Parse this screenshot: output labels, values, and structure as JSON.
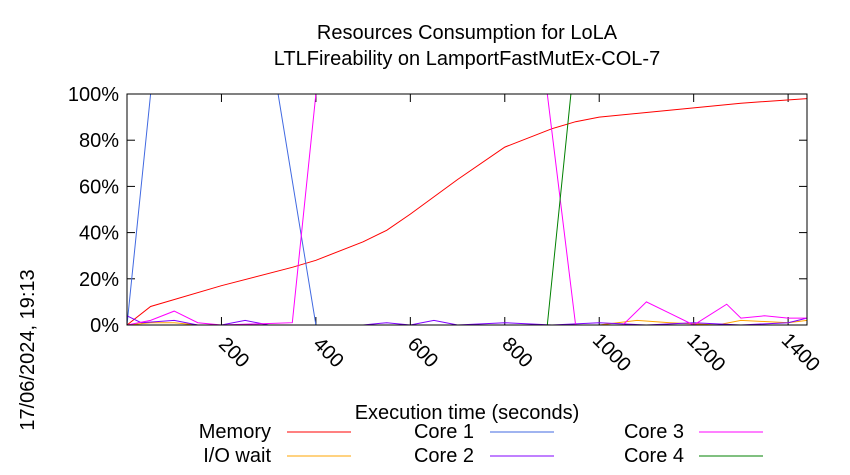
{
  "chart_data": {
    "type": "line",
    "title": "Resources Consumption for LoLA",
    "subtitle": "LTLFireability on LamportFastMutEx-COL-7",
    "xlabel": "Execution time (seconds)",
    "ylabel": "",
    "side_label": "17/06/2024, 19:13",
    "xlim": [
      0,
      1440
    ],
    "ylim": [
      0,
      100
    ],
    "x_ticks": [
      200,
      400,
      600,
      800,
      1000,
      1200,
      1400
    ],
    "y_ticks": [
      0,
      20,
      40,
      60,
      80,
      100
    ],
    "y_tick_suffix": "%",
    "grid": false,
    "legend_position": "bottom",
    "series": [
      {
        "name": "Memory",
        "color": "#ff0000",
        "x": [
          0,
          50,
          200,
          350,
          400,
          500,
          550,
          600,
          700,
          800,
          900,
          950,
          1000,
          1100,
          1200,
          1300,
          1440
        ],
        "y": [
          0,
          8,
          17,
          25,
          28,
          36,
          41,
          48,
          63,
          77,
          85,
          88,
          90,
          92,
          94,
          96,
          98
        ]
      },
      {
        "name": "I/O wait",
        "color": "#ffa500",
        "x": [
          0,
          50,
          100,
          150,
          200,
          300,
          400,
          500,
          600,
          700,
          800,
          900,
          1000,
          1080,
          1150,
          1250,
          1300,
          1400,
          1440
        ],
        "y": [
          0,
          1,
          1,
          0,
          0,
          0,
          0,
          0,
          0,
          0,
          0,
          0,
          0,
          2,
          1,
          0,
          2,
          1,
          2
        ]
      },
      {
        "name": "Core 1",
        "color": "#4169e1",
        "x": [
          0,
          50,
          320,
          400,
          450,
          1440
        ],
        "y": [
          0,
          100,
          100,
          0,
          0,
          0
        ]
      },
      {
        "name": "Core 2",
        "color": "#8000ff",
        "x": [
          0,
          30,
          100,
          150,
          200,
          250,
          300,
          400,
          500,
          550,
          600,
          650,
          700,
          800,
          900,
          1000,
          1100,
          1200,
          1300,
          1400,
          1440
        ],
        "y": [
          4,
          1,
          2,
          0,
          0,
          2,
          0,
          0,
          0,
          1,
          0,
          2,
          0,
          1,
          0,
          1,
          0,
          1,
          0,
          1,
          3
        ]
      },
      {
        "name": "Core 3",
        "color": "#ff00ff",
        "x": [
          0,
          50,
          100,
          150,
          200,
          350,
          400,
          890,
          950,
          1000,
          1050,
          1100,
          1150,
          1200,
          1270,
          1300,
          1350,
          1400,
          1440
        ],
        "y": [
          0,
          2,
          6,
          1,
          0,
          1,
          100,
          100,
          0,
          0,
          0,
          10,
          5,
          0,
          9,
          3,
          4,
          3,
          3
        ]
      },
      {
        "name": "Core 4",
        "color": "#008000",
        "x": [
          0,
          890,
          940,
          1440
        ],
        "y": [
          0,
          0,
          100,
          100
        ]
      }
    ]
  }
}
